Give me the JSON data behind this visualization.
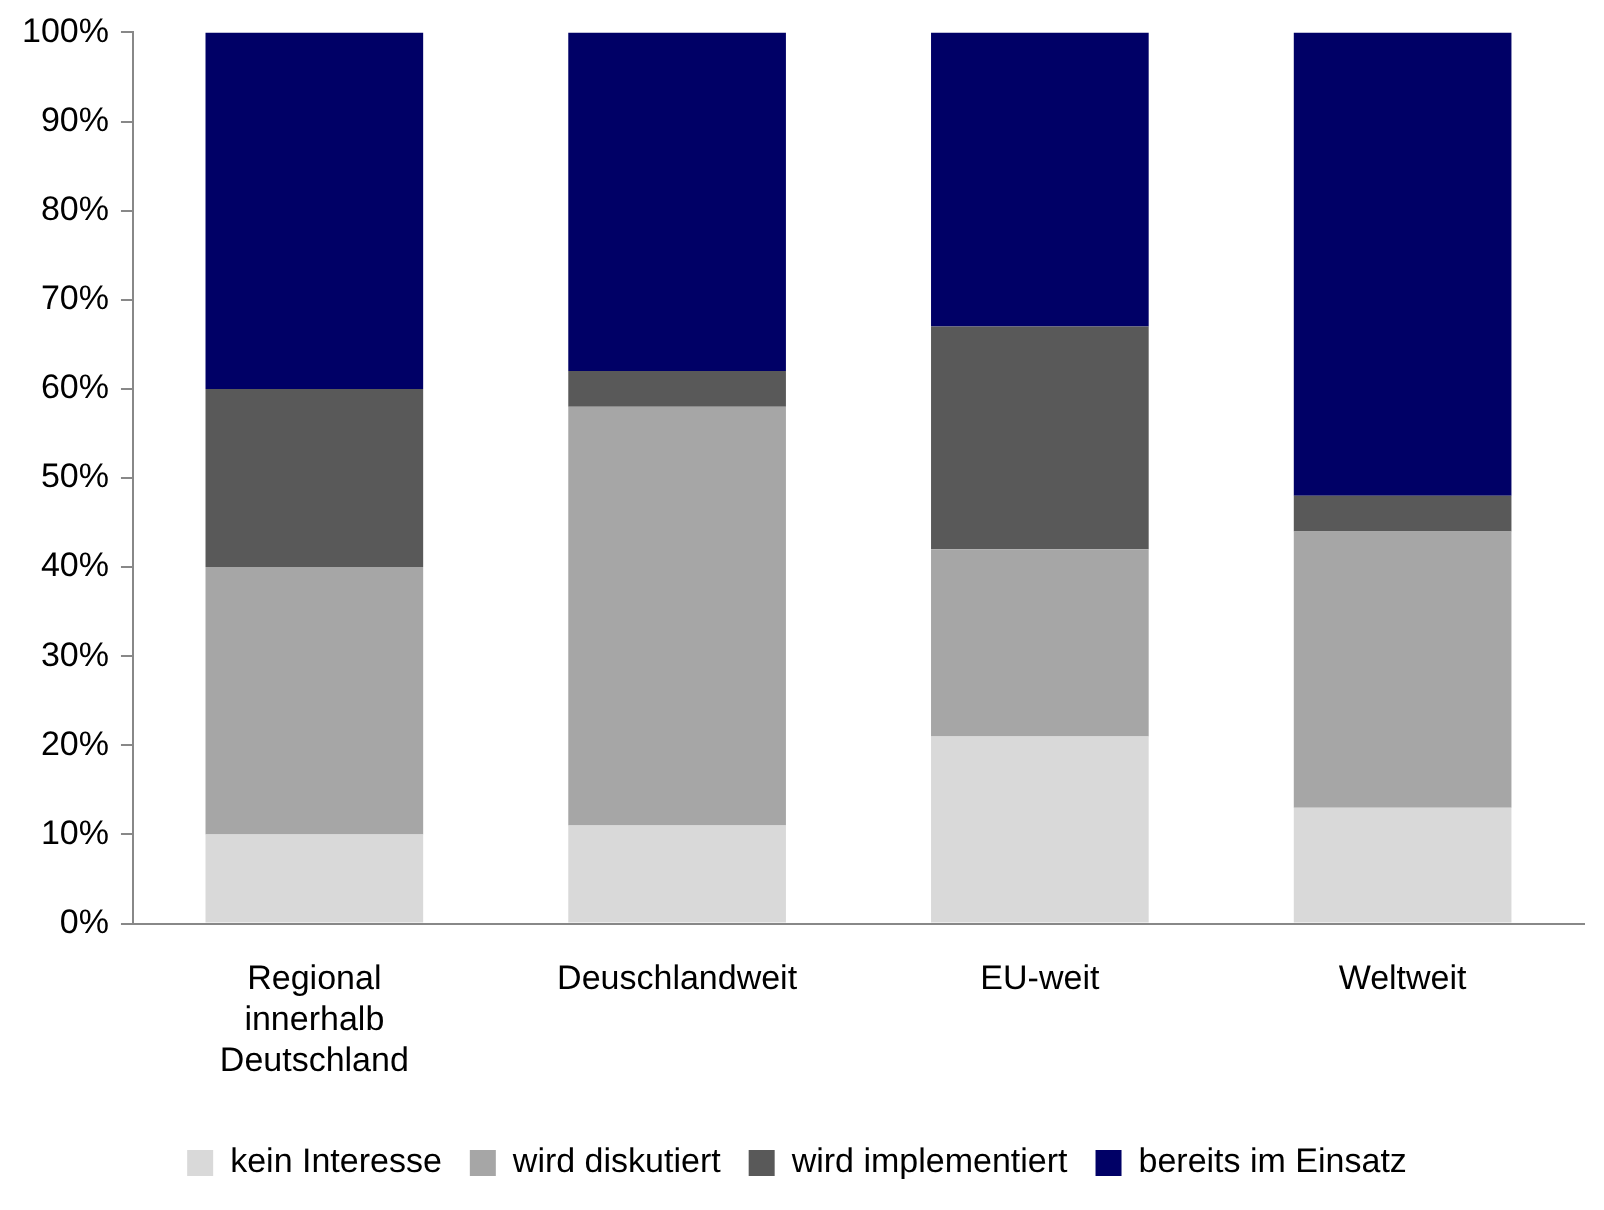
{
  "chart_data": {
    "type": "bar",
    "stacked": true,
    "categories": [
      "Regional innerhalb Deutschland",
      "Deuschlandweit",
      "EU-weit",
      "Weltweit"
    ],
    "series": [
      {
        "name": "kein Interesse",
        "color": "#d9d9d9",
        "values": [
          10,
          11,
          21,
          13
        ]
      },
      {
        "name": "wird diskutiert",
        "color": "#a6a6a6",
        "values": [
          30,
          47,
          21,
          31
        ]
      },
      {
        "name": "wird implementiert",
        "color": "#595959",
        "values": [
          20,
          4,
          25,
          4
        ]
      },
      {
        "name": "bereits im Einsatz",
        "color": "#000066",
        "values": [
          40,
          38,
          33,
          52
        ]
      }
    ],
    "ylim": [
      0,
      100
    ],
    "yticks": [
      {
        "value": 0,
        "label": "0%"
      },
      {
        "value": 10,
        "label": "10%"
      },
      {
        "value": 20,
        "label": "20%"
      },
      {
        "value": 30,
        "label": "30%"
      },
      {
        "value": 40,
        "label": "40%"
      },
      {
        "value": 50,
        "label": "50%"
      },
      {
        "value": 60,
        "label": "60%"
      },
      {
        "value": 70,
        "label": "70%"
      },
      {
        "value": 80,
        "label": "80%"
      },
      {
        "value": 90,
        "label": "90%"
      },
      {
        "value": 100,
        "label": "100%"
      }
    ],
    "grid": false,
    "legend": "bottom"
  }
}
